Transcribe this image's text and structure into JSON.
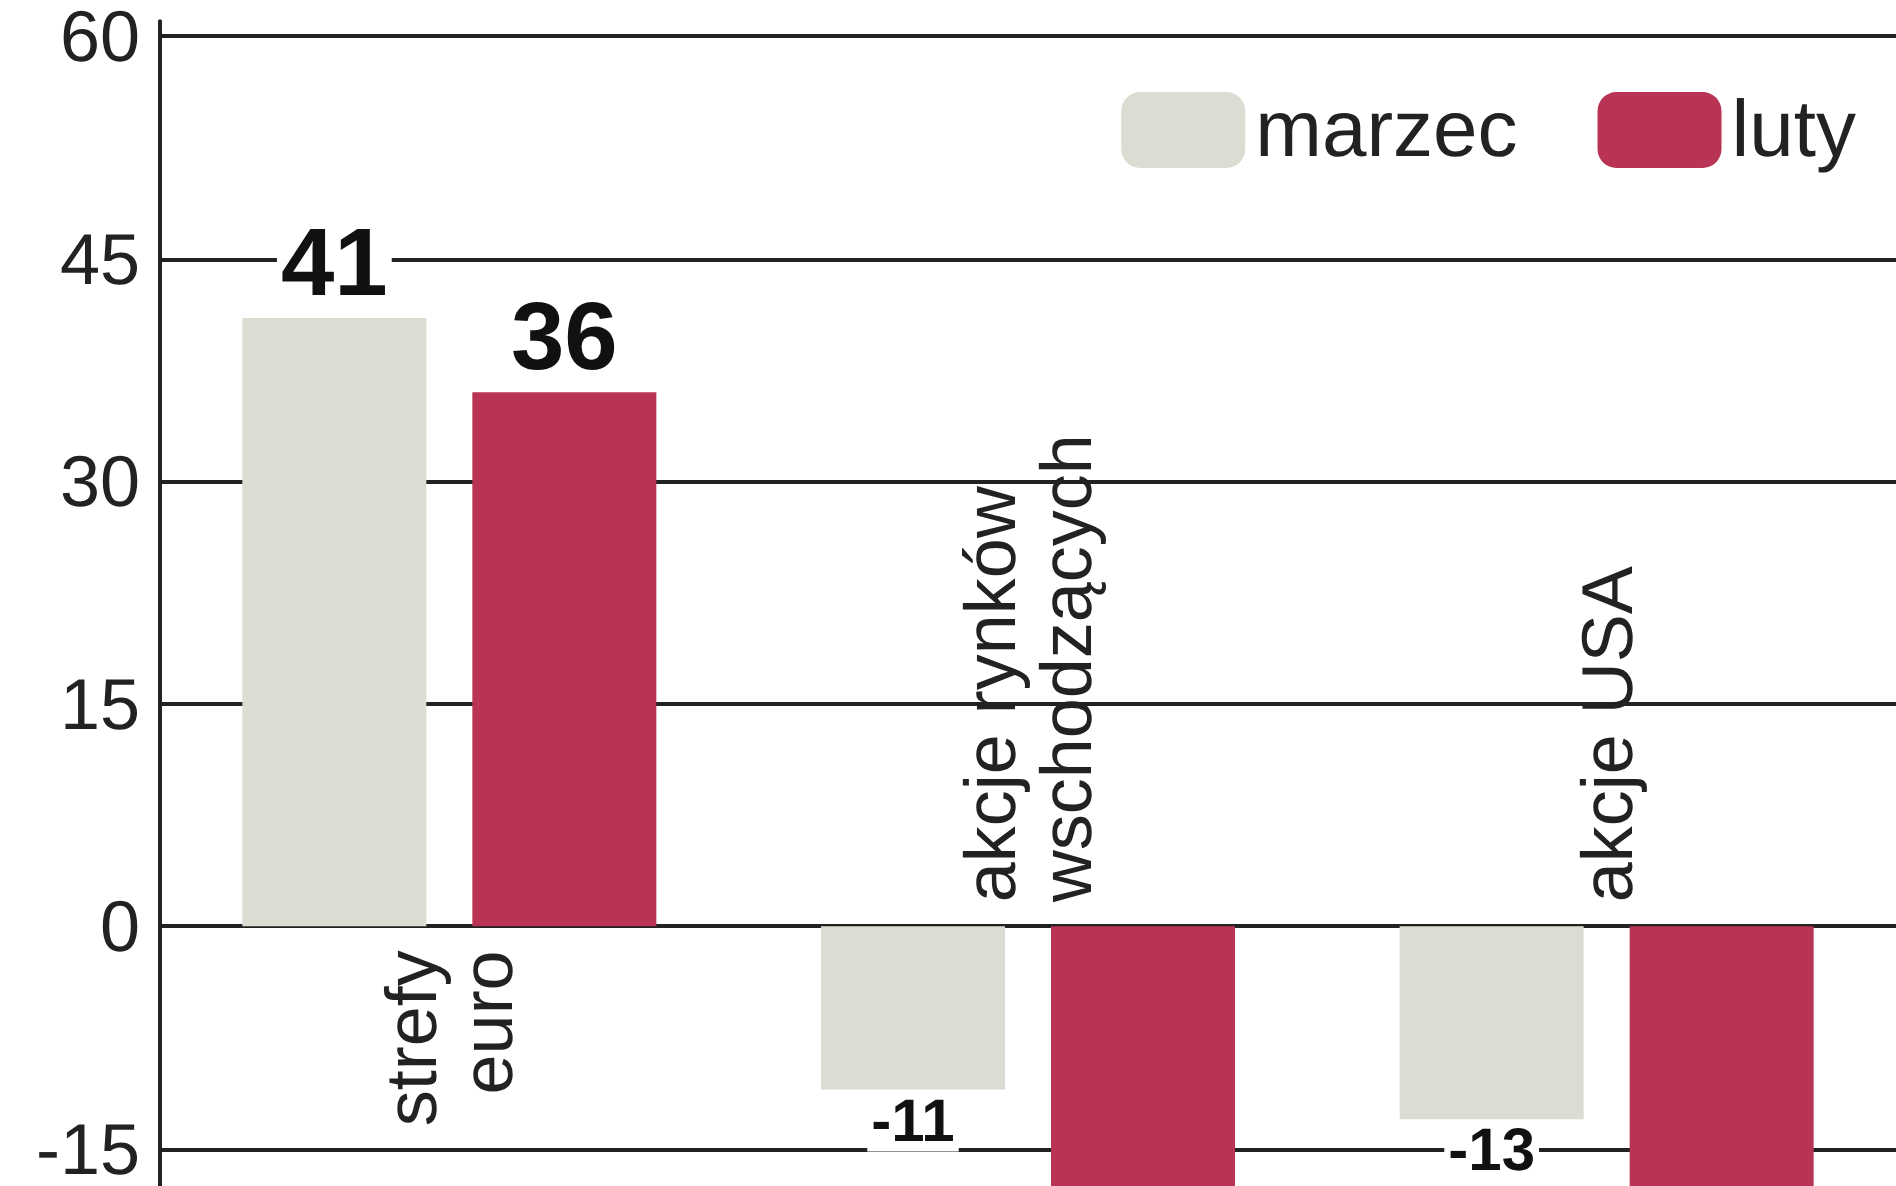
{
  "chart_data": {
    "type": "bar",
    "categories": [
      "strefy\neuro",
      "akcje rynków\nwschodzących",
      "akcje USA"
    ],
    "series": [
      {
        "name": "marzec",
        "color": "#dcdcd2",
        "values": [
          41,
          -11,
          -13
        ],
        "value_labels": [
          "41",
          "-11",
          "-13"
        ]
      },
      {
        "name": "luty",
        "color": "#b83354",
        "values": [
          36,
          -17.5,
          -17.5
        ],
        "value_labels": [
          "36",
          null,
          null
        ]
      }
    ],
    "ylim": [
      -17.5,
      61
    ],
    "yticks": [
      60,
      45,
      30,
      15,
      0,
      -15
    ],
    "grid": "y",
    "legend": "top right"
  }
}
